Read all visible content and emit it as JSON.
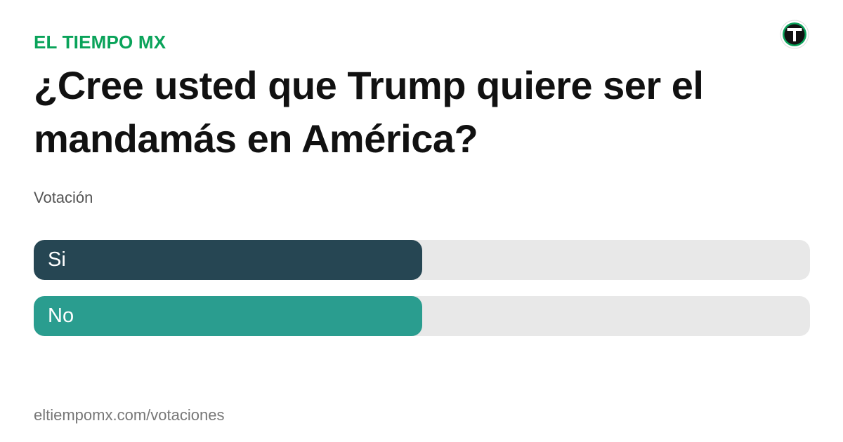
{
  "brand": {
    "name": "EL TIEMPO MX",
    "color": "#0aa35a",
    "logo_icon": "el-tiempo-t-logo-icon"
  },
  "poll": {
    "question": "¿Cree usted que Trump quiere ser el mandamás en América?",
    "subtitle": "Votación",
    "options": [
      {
        "label": "Si",
        "share": 0.5,
        "color": "#264653"
      },
      {
        "label": "No",
        "share": 0.5,
        "color": "#2a9d8f"
      }
    ],
    "track_color": "#e8e8e8"
  },
  "footer": {
    "url": "eltiempomx.com/votaciones"
  }
}
